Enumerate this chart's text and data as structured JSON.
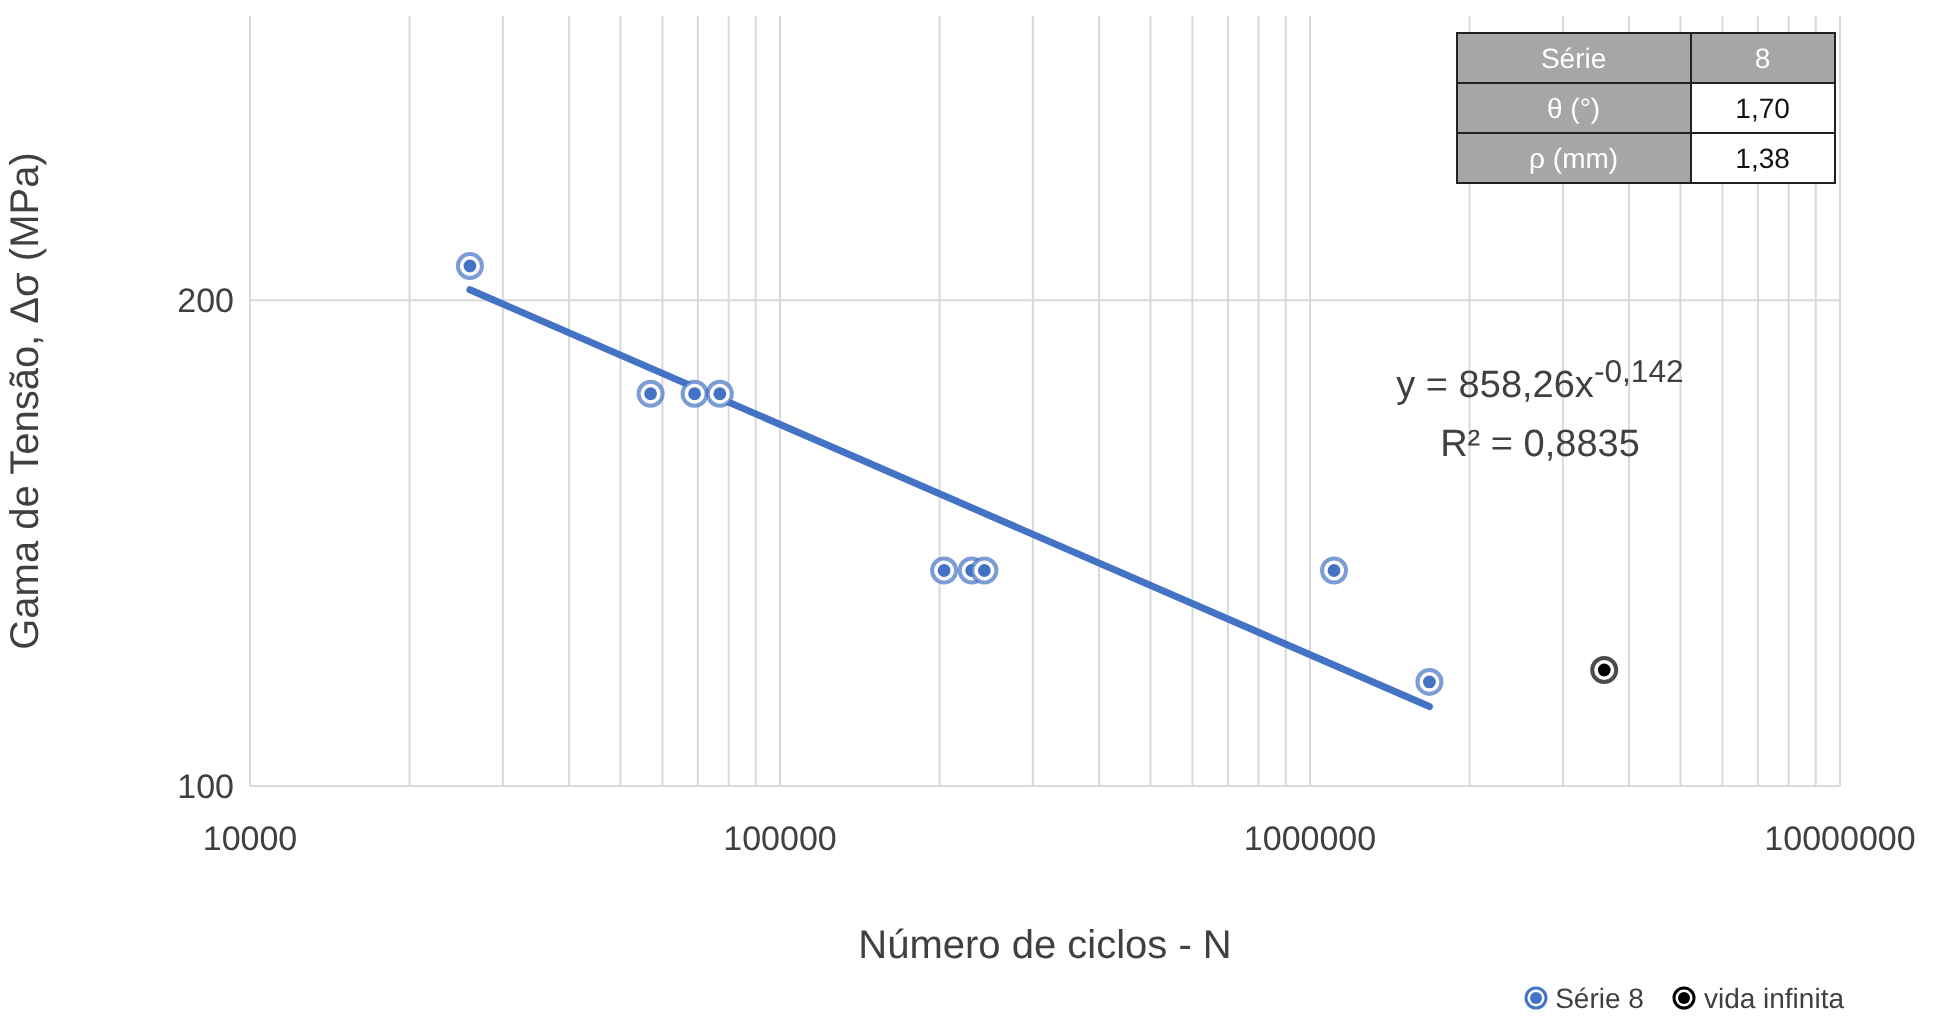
{
  "chart_data": {
    "type": "scatter",
    "xlabel": "Número de ciclos - N",
    "ylabel": "Gama de Tensão, Δσ (MPa)",
    "annotations": [
      "y = 858,26x$^{-0,142}$",
      "R² = 0,8835",
      "Série",
      "8",
      "θ (°)",
      "1,70",
      "ρ (mm)",
      "1,38"
    ],
    "log": "xy",
    "grid": true,
    "legend": "bottom right",
    "marker": "circle",
    "xlim": [
      10000,
      10000000
    ],
    "xticks": [
      10000,
      {
        "value": 20000,
        "label": null
      },
      {
        "value": 30000,
        "label": null
      },
      {
        "value": 40000,
        "label": null
      },
      {
        "value": 50000,
        "label": null
      },
      {
        "value": 60000,
        "label": null
      },
      {
        "value": 70000,
        "label": null
      },
      {
        "value": 80000,
        "label": null
      },
      {
        "value": 90000,
        "label": null
      },
      100000,
      {
        "value": 200000,
        "label": null
      },
      {
        "value": 300000,
        "label": null
      },
      {
        "value": 400000,
        "label": null
      },
      {
        "value": 500000,
        "label": null
      },
      {
        "value": 600000,
        "label": null
      },
      {
        "value": 700000,
        "label": null
      },
      {
        "value": 800000,
        "label": null
      },
      {
        "value": 900000,
        "label": null
      },
      1000000,
      {
        "value": 2000000,
        "label": null
      },
      {
        "value": 3000000,
        "label": null
      },
      {
        "value": 4000000,
        "label": null
      },
      {
        "value": 5000000,
        "label": null
      },
      {
        "value": 6000000,
        "label": null
      },
      {
        "value": 7000000,
        "label": null
      },
      {
        "value": 8000000,
        "label": null
      },
      {
        "value": 9000000,
        "label": null
      },
      10000000
    ],
    "ylim": [
      100,
      300
    ],
    "yticks": [
      100,
      200
    ],
    "series": [
      {
        "name": "Série 8",
        "color": "#4472c4",
        "x": [
          26000,
          57000,
          69000,
          77000,
          204000,
          230000,
          243000,
          1110000,
          1680000
        ],
        "values": [
          210,
          175,
          175,
          175,
          136,
          136,
          136,
          136,
          116
        ]
      },
      {
        "name": "vida infinita",
        "color": "#000000",
        "x": [
          3590000
        ],
        "values": [
          118
        ]
      },
      {
        "type": "line",
        "color": "#4472c4",
        "x": [
          26000,
          1680000
        ],
        "values": [
          203,
          112
        ],
        "marker": "none"
      }
    ]
  }
}
